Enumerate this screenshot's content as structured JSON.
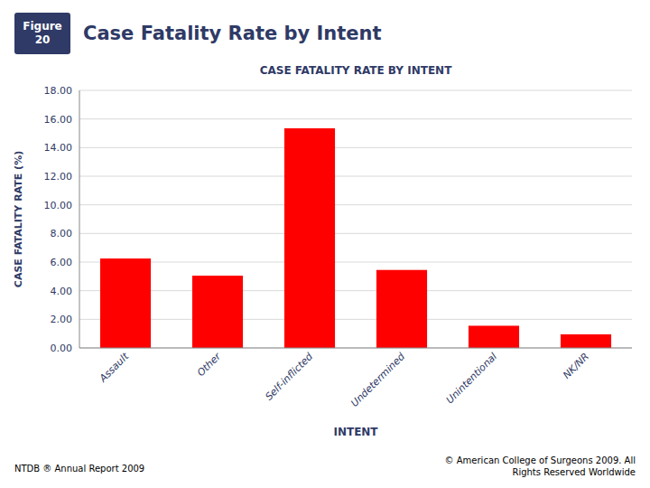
{
  "chart_data": {
    "type": "bar",
    "title": "Case Fatality Rate by Intent",
    "subtitle": "CASE FATALITY RATE BY INTENT",
    "categories": [
      "Assault",
      "Other",
      "Self-inflicted",
      "Undetermined",
      "Unintentional",
      "NK/NR"
    ],
    "values": [
      6.25,
      5.05,
      15.35,
      5.45,
      1.55,
      0.95
    ],
    "color": "#ff0000",
    "xlabel": "INTENT",
    "ylabel": "CASE FATALITY RATE (%)",
    "ylim": [
      0,
      18.0
    ],
    "yticks": [
      {
        "value": 0.0,
        "label": "0.00"
      },
      {
        "value": 2.0,
        "label": "2.00"
      },
      {
        "value": 4.0,
        "label": "4.00"
      },
      {
        "value": 6.0,
        "label": "6.00"
      },
      {
        "value": 8.0,
        "label": "8.00"
      },
      {
        "value": 10.0,
        "label": "10.00"
      },
      {
        "value": 12.0,
        "label": "12.00"
      },
      {
        "value": 14.0,
        "label": "14.00"
      },
      {
        "value": 16.0,
        "label": "16.00"
      },
      {
        "value": 18.0,
        "label": "18.00"
      }
    ],
    "grid": true,
    "annotations": [
      "Figure\n20",
      "NTDB ® Annual Report 2009",
      "© American College of Surgeons 2009.  All\nRights Reserved Worldwide"
    ]
  }
}
